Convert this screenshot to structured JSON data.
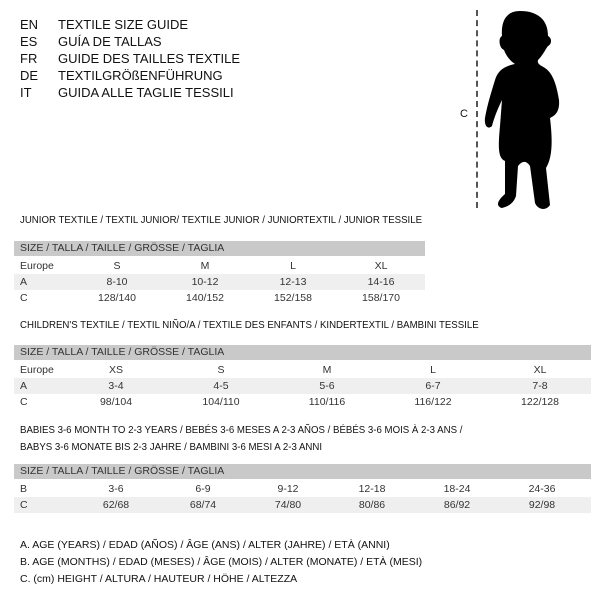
{
  "languages": [
    {
      "code": "EN",
      "text": "TEXTILE SIZE GUIDE"
    },
    {
      "code": "ES",
      "text": "GUÍA DE TALLAS"
    },
    {
      "code": "FR",
      "text": "GUIDE DES TAILLES TEXTILE"
    },
    {
      "code": "DE",
      "text": "TEXTILGRÖßENFÜHRUNG"
    },
    {
      "code": "IT",
      "text": "GUIDA ALLE TAGLIE TESSILI"
    }
  ],
  "figure": {
    "height_label": "C",
    "icon": "child-silhouette"
  },
  "tables": [
    {
      "title": "JUNIOR TEXTILE / TEXTIL JUNIOR/ TEXTILE JUNIOR / JUNIORTEXTIL / JUNIOR TESSILE",
      "header": "SIZE / TALLA / TAILLE / GRÖSSE / TAGLIA",
      "rows": [
        {
          "label": "Europe",
          "cells": [
            "S",
            "M",
            "L",
            "XL"
          ]
        },
        {
          "label": "A",
          "cells": [
            "8-10",
            "10-12",
            "12-13",
            "14-16"
          ]
        },
        {
          "label": "C",
          "cells": [
            "128/140",
            "140/152",
            "152/158",
            "158/170"
          ]
        }
      ]
    },
    {
      "title": "CHILDREN'S TEXTILE / TEXTIL NIÑO/A / TEXTILE DES ENFANTS / KINDERTEXTIL / BAMBINI TESSILE",
      "header": "SIZE / TALLA / TAILLE / GRÖSSE / TAGLIA",
      "rows": [
        {
          "label": "Europe",
          "cells": [
            "XS",
            "S",
            "M",
            "L",
            "XL"
          ]
        },
        {
          "label": "A",
          "cells": [
            "3-4",
            "4-5",
            "5-6",
            "6-7",
            "7-8"
          ]
        },
        {
          "label": "C",
          "cells": [
            "98/104",
            "104/110",
            "110/116",
            "116/122",
            "122/128"
          ]
        }
      ]
    },
    {
      "title": "BABIES 3-6 MONTH TO 2-3 YEARS / BEBÉS 3-6 MESES A 2-3 AÑOS / BÉBÉS 3-6 MOIS À 2-3 ANS /",
      "title2": "BABYS 3-6 MONATE BIS 2-3 JAHRE / BAMBINI 3-6 MESI A 2-3 ANNI",
      "header": "SIZE / TALLA / TAILLE / GRÖSSE / TAGLIA",
      "rows": [
        {
          "label": "B",
          "cells": [
            "3-6",
            "6-9",
            "9-12",
            "12-18",
            "18-24",
            "24-36"
          ]
        },
        {
          "label": "C",
          "cells": [
            "62/68",
            "68/74",
            "74/80",
            "80/86",
            "86/92",
            "92/98"
          ]
        }
      ]
    }
  ],
  "legend": [
    "A. AGE (YEARS) / EDAD (AÑOS) / ÂGE (ANS) / ALTER (JAHRE) / ETÀ (ANNI)",
    "B. AGE (MONTHS) / EDAD (MESES) / ÂGE (MOIS) / ALTER (MONATE) / ETÀ (MESI)",
    "C. (cm) HEIGHT / ALTURA / HAUTEUR / HÖHE / ALTEZZA"
  ]
}
